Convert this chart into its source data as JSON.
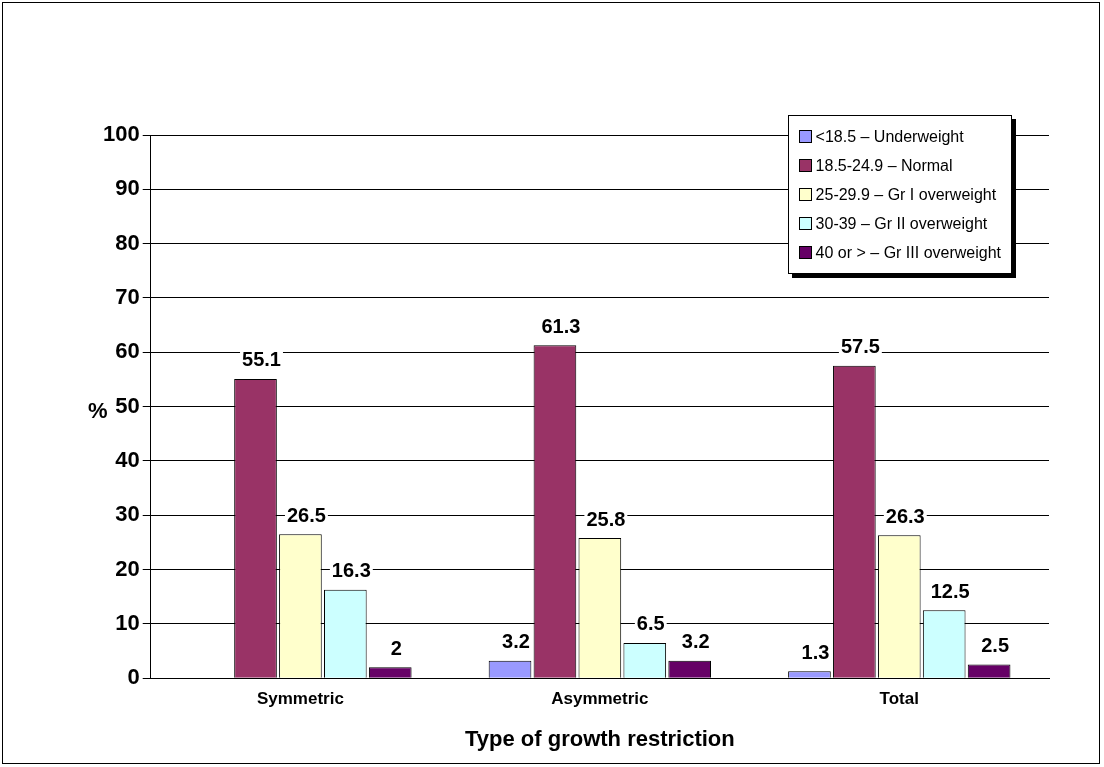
{
  "chart_data": {
    "type": "bar",
    "xlabel": "Type of growth restriction",
    "ylabel": "%",
    "categories": [
      "Symmetric",
      "Asymmetric",
      "Total"
    ],
    "series": [
      {
        "name": "<18.5 – Underweight",
        "color": "#9999ff",
        "values": [
          null,
          3.2,
          1.3
        ],
        "value_labels": [
          null,
          "3.2",
          "1.3"
        ]
      },
      {
        "name": "18.5-24.9 – Normal",
        "color": "#993366",
        "values": [
          55.1,
          61.3,
          57.5
        ],
        "value_labels": [
          "55.1",
          "61.3",
          "57.5"
        ]
      },
      {
        "name": "25-29.9 – Gr I overweight",
        "color": "#ffffcc",
        "values": [
          26.5,
          25.8,
          26.3
        ],
        "value_labels": [
          "26.5",
          "25.8",
          "26.3"
        ]
      },
      {
        "name": "30-39 – Gr II overweight",
        "color": "#ccffff",
        "values": [
          16.3,
          6.5,
          12.5
        ],
        "value_labels": [
          "16.3",
          "6.5",
          "12.5"
        ]
      },
      {
        "name": "40 or > – Gr III overweight",
        "color": "#660066",
        "values": [
          2,
          3.2,
          2.5
        ],
        "value_labels": [
          "2",
          "3.2",
          "2.5"
        ]
      }
    ],
    "ylim": [
      0,
      100
    ],
    "yticks": [
      0,
      10,
      20,
      30,
      40,
      50,
      60,
      70,
      80,
      90,
      100
    ],
    "grid": "y",
    "legend": "top right"
  }
}
